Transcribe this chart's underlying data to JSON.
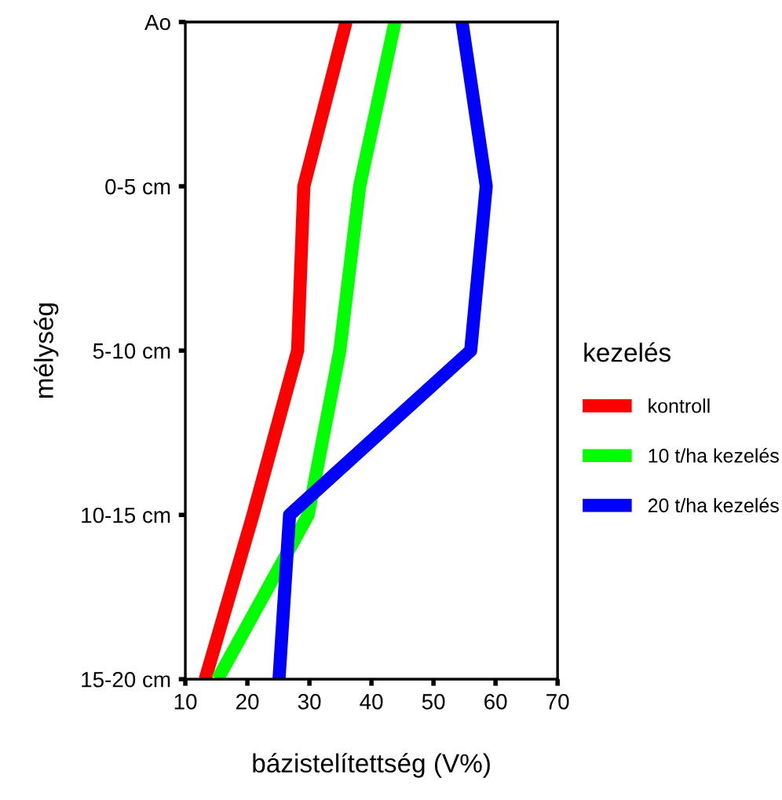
{
  "chart_data": {
    "type": "line",
    "orientation": "horizontal",
    "xlabel": "bázistelítettség (V%)",
    "ylabel": "mélység",
    "legend_title": "kezelés",
    "legend": "right",
    "categories": [
      "Ao",
      "0-5 cm",
      "5-10 cm",
      "10-15 cm",
      "15-20 cm"
    ],
    "xlim": [
      10,
      70
    ],
    "xticks": [
      10,
      20,
      30,
      40,
      50,
      60,
      70
    ],
    "grid": false,
    "marker": "none",
    "line_style": "solid",
    "series": [
      {
        "name": "kontroll",
        "color": "#ff0000",
        "values": [
          35.9,
          29.1,
          28.1,
          20.9,
          13.2
        ]
      },
      {
        "name": "10 t/ha kezelés",
        "color": "#00ff00",
        "values": [
          43.8,
          38.1,
          34.9,
          29.8,
          15.2
        ]
      },
      {
        "name": "20 t/ha kezelés",
        "color": "#0000ff",
        "values": [
          54.6,
          58.5,
          56.0,
          26.8,
          25.1
        ]
      }
    ]
  }
}
